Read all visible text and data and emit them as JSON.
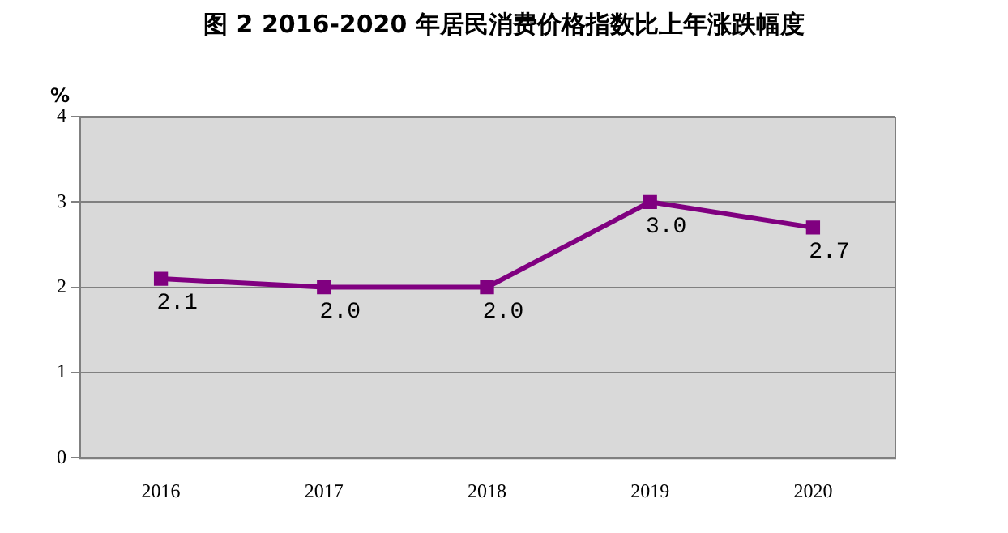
{
  "chart_data": {
    "type": "line",
    "title": "图 2   2016-2020 年居民消费价格指数比上年涨跌幅度",
    "ylabel": "%",
    "categories": [
      "2016",
      "2017",
      "2018",
      "2019",
      "2020"
    ],
    "series": [
      {
        "color": "#800080",
        "values": [
          2.1,
          2.0,
          2.0,
          3.0,
          2.7
        ],
        "value_labels": [
          "2.1",
          "2.0",
          "2.0",
          "3.0",
          "2.7"
        ]
      }
    ],
    "ylim": [
      0,
      4
    ],
    "yticks": [
      0,
      1,
      2,
      3,
      4
    ],
    "grid": "y",
    "legend": false,
    "marker": "square",
    "line_style": "solid"
  }
}
